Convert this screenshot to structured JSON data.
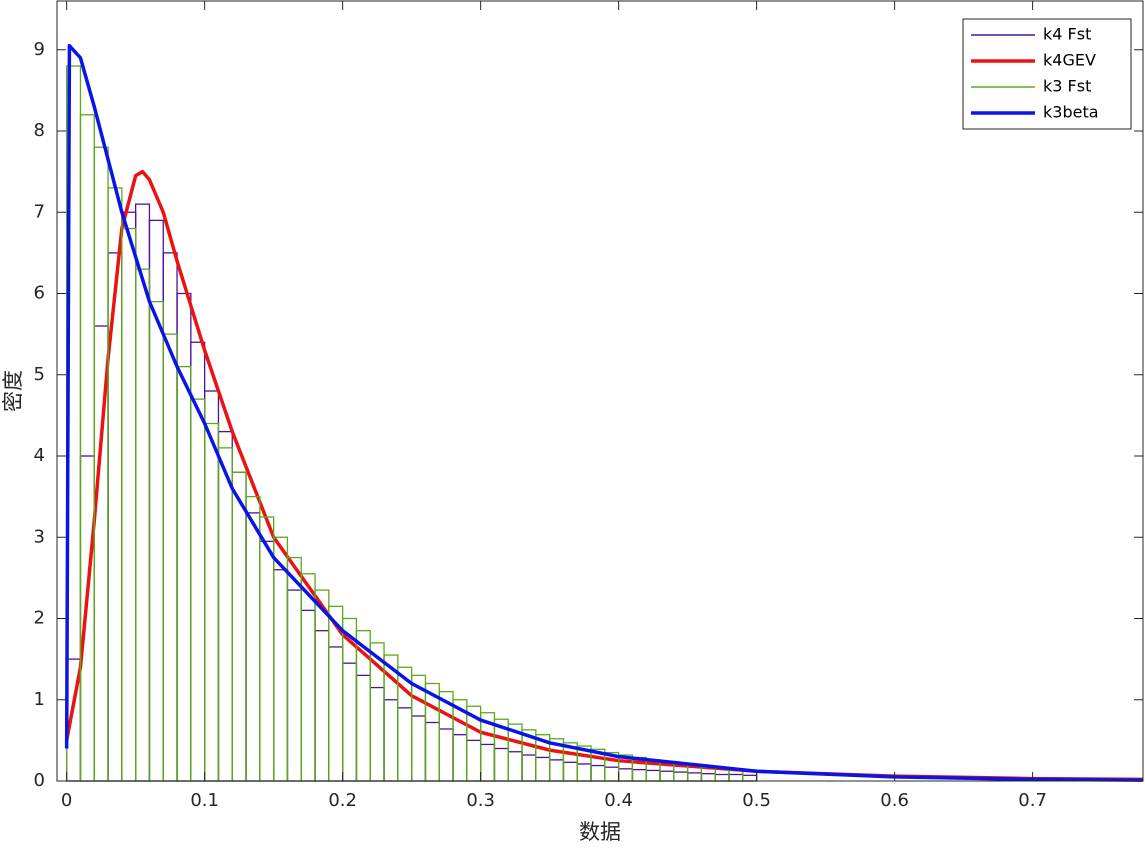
{
  "chart_data": {
    "type": "histogram",
    "xlabel": "数据",
    "ylabel": "密度",
    "xlim": [
      -0.007,
      0.78
    ],
    "ylim": [
      0,
      9.6
    ],
    "xticks": [
      0,
      0.1,
      0.2,
      0.3,
      0.4,
      0.5,
      0.6,
      0.7
    ],
    "yticks": [
      0,
      1,
      2,
      3,
      4,
      5,
      6,
      7,
      8,
      9
    ],
    "legend": "northeast",
    "bins": [
      0,
      0.01,
      0.02,
      0.03,
      0.04,
      0.05,
      0.06,
      0.07,
      0.08,
      0.09,
      0.1,
      0.11,
      0.12,
      0.13,
      0.14,
      0.15,
      0.16,
      0.17,
      0.18,
      0.19,
      0.2,
      0.21,
      0.22,
      0.23,
      0.24,
      0.25,
      0.26,
      0.27,
      0.28,
      0.29,
      0.3,
      0.31,
      0.32,
      0.33,
      0.34,
      0.35,
      0.36,
      0.37,
      0.38,
      0.39,
      0.4,
      0.41,
      0.42,
      0.43,
      0.44,
      0.45,
      0.46,
      0.47,
      0.48,
      0.49,
      0.5
    ],
    "series": [
      {
        "name": "k4 Fst",
        "type": "histogram",
        "color": "#4b12a0",
        "values": [
          1.5,
          4.0,
          5.6,
          6.5,
          7.0,
          7.1,
          6.9,
          6.5,
          6.0,
          5.4,
          4.8,
          4.3,
          3.8,
          3.3,
          2.95,
          2.6,
          2.35,
          2.1,
          1.85,
          1.65,
          1.45,
          1.3,
          1.15,
          1.0,
          0.9,
          0.8,
          0.72,
          0.64,
          0.57,
          0.5,
          0.45,
          0.4,
          0.36,
          0.32,
          0.29,
          0.26,
          0.23,
          0.21,
          0.19,
          0.17,
          0.15,
          0.14,
          0.13,
          0.12,
          0.11,
          0.1,
          0.09,
          0.08,
          0.08,
          0.07
        ]
      },
      {
        "name": "k4GEV",
        "type": "line",
        "color": "#ee1111",
        "x": [
          0,
          0.01,
          0.02,
          0.03,
          0.04,
          0.05,
          0.055,
          0.06,
          0.07,
          0.08,
          0.1,
          0.12,
          0.15,
          0.2,
          0.25,
          0.3,
          0.35,
          0.4,
          0.5,
          0.6,
          0.7,
          0.78
        ],
        "values": [
          0.5,
          1.4,
          3.2,
          5.2,
          6.8,
          7.45,
          7.5,
          7.4,
          7.0,
          6.4,
          5.3,
          4.3,
          3.0,
          1.8,
          1.05,
          0.6,
          0.38,
          0.25,
          0.12,
          0.06,
          0.03,
          0.02
        ]
      },
      {
        "name": "k3 Fst",
        "type": "histogram",
        "color": "#5aaa1a",
        "values": [
          8.8,
          8.2,
          7.8,
          7.3,
          6.8,
          6.3,
          5.9,
          5.5,
          5.1,
          4.7,
          4.4,
          4.1,
          3.8,
          3.5,
          3.25,
          3.0,
          2.75,
          2.55,
          2.35,
          2.15,
          2.0,
          1.85,
          1.7,
          1.55,
          1.4,
          1.3,
          1.2,
          1.1,
          1.0,
          0.92,
          0.84,
          0.76,
          0.7,
          0.63,
          0.57,
          0.52,
          0.47,
          0.43,
          0.39,
          0.35,
          0.32,
          0.29,
          0.26,
          0.24,
          0.21,
          0.19,
          0.17,
          0.16,
          0.14,
          0.13
        ]
      },
      {
        "name": "k3beta",
        "type": "line",
        "color": "#0a14e6",
        "x": [
          0,
          0.002,
          0.01,
          0.02,
          0.04,
          0.06,
          0.08,
          0.1,
          0.12,
          0.15,
          0.2,
          0.25,
          0.3,
          0.35,
          0.4,
          0.5,
          0.6,
          0.7,
          0.78
        ],
        "values": [
          0.4,
          9.05,
          8.9,
          8.3,
          7.0,
          5.9,
          5.1,
          4.4,
          3.6,
          2.75,
          1.85,
          1.2,
          0.75,
          0.47,
          0.3,
          0.12,
          0.05,
          0.02,
          0.01
        ]
      }
    ]
  }
}
